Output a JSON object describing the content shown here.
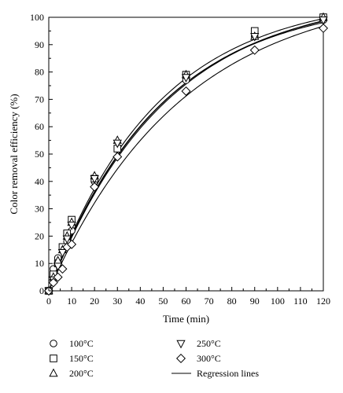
{
  "chart_data": {
    "type": "scatter",
    "title": "",
    "xlabel": "Time (min)",
    "ylabel": "Color removal efficiency (%)",
    "xlim": [
      0,
      120
    ],
    "ylim": [
      0,
      100
    ],
    "xticks": [
      0,
      10,
      20,
      30,
      40,
      50,
      60,
      70,
      80,
      90,
      100,
      110,
      120
    ],
    "yticks": [
      0,
      10,
      20,
      30,
      40,
      50,
      60,
      70,
      80,
      90,
      100
    ],
    "grid": false,
    "legend": "bottom",
    "x": [
      0,
      2,
      4,
      6,
      8,
      10,
      20,
      30,
      60,
      90,
      120
    ],
    "series": [
      {
        "name": "100°C",
        "marker": "circle",
        "values": [
          0,
          8,
          12,
          15,
          18,
          22,
          40,
          52,
          77,
          93,
          99
        ]
      },
      {
        "name": "150°C",
        "marker": "square",
        "values": [
          0,
          6,
          10,
          16,
          21,
          26,
          41,
          52,
          79,
          95,
          100
        ]
      },
      {
        "name": "200°C",
        "marker": "triangle-up",
        "values": [
          0,
          5,
          11,
          15,
          20,
          25,
          42,
          55,
          79,
          93,
          100
        ]
      },
      {
        "name": "250°C",
        "marker": "triangle-down",
        "values": [
          0,
          4,
          9,
          14,
          19,
          24,
          41,
          54,
          78,
          93,
          99
        ]
      },
      {
        "name": "300°C",
        "marker": "diamond",
        "values": [
          0,
          3,
          5,
          8,
          16,
          17,
          38,
          49,
          73,
          88,
          96
        ]
      }
    ],
    "regression": {
      "label": "Regression lines",
      "curves": [
        {
          "ymax": 107,
          "k": 0.0207
        },
        {
          "ymax": 108,
          "k": 0.0203
        },
        {
          "ymax": 108,
          "k": 0.0212
        },
        {
          "ymax": 109,
          "k": 0.0197
        },
        {
          "ymax": 111,
          "k": 0.0171
        }
      ]
    }
  }
}
